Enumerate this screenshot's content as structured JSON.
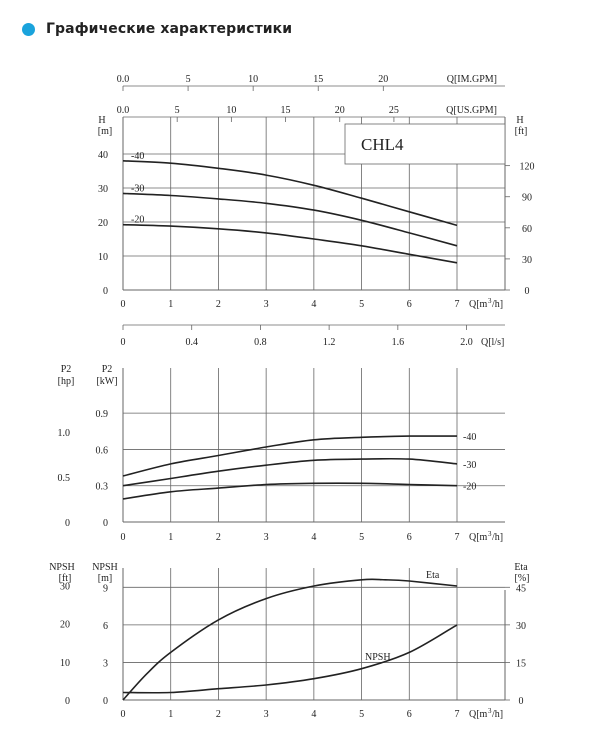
{
  "header": {
    "title": "Графические характеристики"
  },
  "colors": {
    "accent": "#1aa3dc",
    "curve": "#222222",
    "grid": "#666666"
  },
  "chart_data": [
    {
      "type": "line",
      "title": "CHL4",
      "x_ticks": [
        "0",
        "1",
        "2",
        "3",
        "4",
        "5",
        "6",
        "7"
      ],
      "x_unit": "Q[m³/h]",
      "xlim": [
        0,
        7
      ],
      "top_axes": [
        {
          "label": "Q[IM.GPM]",
          "ticks": [
            "0.0",
            "5",
            "10",
            "15",
            "20"
          ],
          "values": [
            0,
            5,
            10,
            15,
            20
          ],
          "per_m3h": 3.666
        },
        {
          "label": "Q[US.GPM]",
          "ticks": [
            "0.0",
            "5",
            "10",
            "15",
            "20",
            "25"
          ],
          "values": [
            0,
            5,
            10,
            15,
            20,
            25
          ],
          "per_m3h": 4.403
        }
      ],
      "y_left": {
        "label": [
          "H",
          "[m]"
        ],
        "ticks": [
          "0",
          "10",
          "20",
          "30",
          "40"
        ],
        "ylim": [
          0,
          40
        ]
      },
      "y_right": {
        "label": [
          "H",
          "[ft]"
        ],
        "ticks": [
          "0",
          "30",
          "60",
          "90",
          "120"
        ],
        "factor": 3.2808
      },
      "series": [
        {
          "name": "-40",
          "x": [
            0,
            1,
            2,
            3,
            4,
            5,
            6,
            7
          ],
          "values": [
            38,
            37.3,
            35.8,
            33.8,
            30.8,
            27,
            23,
            19
          ]
        },
        {
          "name": "-30",
          "x": [
            0,
            1,
            2,
            3,
            4,
            5,
            6,
            7
          ],
          "values": [
            28.4,
            27.8,
            26.8,
            25.5,
            23.5,
            20.5,
            16.8,
            13
          ]
        },
        {
          "name": "-20",
          "x": [
            0,
            1,
            2,
            3,
            4,
            5,
            6,
            7
          ],
          "values": [
            19.2,
            18.8,
            18,
            16.8,
            15,
            13,
            10.5,
            8
          ]
        }
      ]
    },
    {
      "type": "axis",
      "label": "Q[l/s]",
      "ticks": [
        "0",
        "0.4",
        "0.8",
        "1.2",
        "1.6",
        "2.0"
      ],
      "values": [
        0,
        0.4,
        0.8,
        1.2,
        1.6,
        2.0
      ],
      "per_m3h": 0.27778
    },
    {
      "type": "line",
      "x_ticks": [
        "0",
        "1",
        "2",
        "3",
        "4",
        "5",
        "6",
        "7"
      ],
      "x_unit": "Q[m³/h]",
      "xlim": [
        0,
        7
      ],
      "y_left": {
        "label": [
          "P2",
          "[kW]"
        ],
        "ticks": [
          "0",
          "0.3",
          "0.6",
          "0.9"
        ],
        "ylim": [
          0,
          1.05
        ]
      },
      "y_left2": {
        "label": [
          "P2",
          "[hp]"
        ],
        "ticks": [
          "0",
          "0.5",
          "1.0"
        ],
        "values": [
          0,
          0.5,
          1.0
        ],
        "kw_per_hp": 0.7457
      },
      "series": [
        {
          "name": "-40",
          "x": [
            0,
            1,
            2,
            3,
            4,
            5,
            6,
            7
          ],
          "values": [
            0.38,
            0.48,
            0.55,
            0.62,
            0.68,
            0.7,
            0.71,
            0.71
          ]
        },
        {
          "name": "-30",
          "x": [
            0,
            1,
            2,
            3,
            4,
            5,
            6,
            7
          ],
          "values": [
            0.3,
            0.36,
            0.42,
            0.47,
            0.51,
            0.52,
            0.52,
            0.48
          ]
        },
        {
          "name": "-20",
          "x": [
            0,
            1,
            2,
            3,
            4,
            5,
            6,
            7
          ],
          "values": [
            0.19,
            0.25,
            0.28,
            0.31,
            0.32,
            0.32,
            0.31,
            0.3
          ]
        }
      ]
    },
    {
      "type": "line",
      "x_ticks": [
        "0",
        "1",
        "2",
        "3",
        "4",
        "5",
        "6",
        "7"
      ],
      "x_unit": "Q[m³/h]",
      "xlim": [
        0,
        7
      ],
      "y_left": {
        "label": [
          "NPSH",
          "[m]"
        ],
        "ticks": [
          "0",
          "3",
          "6",
          "9"
        ],
        "ylim": [
          0,
          10
        ]
      },
      "y_left2": {
        "label": [
          "NPSH",
          "[ft]"
        ],
        "ticks": [
          "0",
          "10",
          "20",
          "30"
        ],
        "values": [
          0,
          10,
          20,
          30
        ],
        "ft_per_m": 3.2808
      },
      "y_right": {
        "label": [
          "Eta",
          "[%]"
        ],
        "ticks": [
          "0",
          "15",
          "30",
          "45"
        ],
        "ylim": [
          0,
          50
        ]
      },
      "series": [
        {
          "name": "NPSH",
          "axis": "left",
          "x": [
            0,
            1,
            2,
            3,
            4,
            5,
            6,
            7
          ],
          "values": [
            0.6,
            0.6,
            0.9,
            1.2,
            1.7,
            2.5,
            3.8,
            6
          ]
        },
        {
          "name": "Eta",
          "axis": "right",
          "x": [
            0,
            0.5,
            1,
            2,
            3,
            4,
            5,
            5.5,
            6,
            7
          ],
          "values": [
            0,
            10.5,
            19,
            32,
            40.5,
            45.5,
            48,
            48,
            47.5,
            45.5
          ]
        }
      ]
    }
  ]
}
